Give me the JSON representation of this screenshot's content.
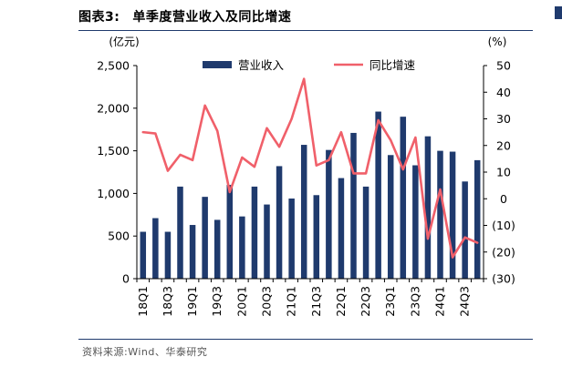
{
  "figure": {
    "label": "图表3:",
    "title": "单季度营业收入及同比增速",
    "source": "资料来源:Wind、华泰研究"
  },
  "chart_data": {
    "type": "bar",
    "categories": [
      "18Q1",
      "18Q2",
      "18Q3",
      "18Q4",
      "19Q1",
      "19Q2",
      "19Q3",
      "19Q4",
      "20Q1",
      "20Q2",
      "20Q3",
      "20Q4",
      "21Q1",
      "21Q2",
      "21Q3",
      "21Q4",
      "22Q1",
      "22Q2",
      "22Q3",
      "22Q4",
      "23Q1",
      "23Q2",
      "23Q3",
      "23Q4",
      "24Q1",
      "24Q2",
      "24Q3",
      "24Q4"
    ],
    "tick_labels_shown": [
      "18Q1",
      "18Q3",
      "19Q1",
      "19Q3",
      "20Q1",
      "20Q3",
      "21Q1",
      "21Q3",
      "22Q1",
      "22Q3",
      "23Q1",
      "23Q3",
      "24Q1",
      "24Q3"
    ],
    "series": [
      {
        "name": "营业收入",
        "type": "bar",
        "axis": "left",
        "color": "#1f3a6d",
        "values": [
          550,
          710,
          550,
          1080,
          630,
          960,
          690,
          1100,
          730,
          1080,
          870,
          1320,
          940,
          1570,
          980,
          1510,
          1180,
          1710,
          1080,
          1960,
          1450,
          1900,
          1330,
          1670,
          1500,
          1490,
          1140,
          1390
        ]
      },
      {
        "name": "同比增速",
        "type": "line",
        "axis": "right",
        "color": "#f0606a",
        "values": [
          25,
          24.5,
          10.5,
          16.5,
          14.5,
          35,
          25.5,
          2.5,
          15.5,
          12,
          26.5,
          19.5,
          30,
          45,
          12.5,
          14.5,
          25,
          9.5,
          9.5,
          29.5,
          22,
          11,
          23,
          -15,
          3.5,
          -22,
          -14.5,
          -16.5
        ]
      }
    ],
    "left_axis": {
      "unit": "(亿元)",
      "ylim": [
        0,
        2500
      ],
      "ticks": [
        "0",
        "500",
        "1,000",
        "1,500",
        "2,000",
        "2,500"
      ],
      "tick_values": [
        0,
        500,
        1000,
        1500,
        2000,
        2500
      ]
    },
    "right_axis": {
      "unit": "(%)",
      "ylim": [
        -30,
        50
      ],
      "ticks": [
        "(30)",
        "(20)",
        "(10)",
        "0",
        "10",
        "20",
        "30",
        "40",
        "50"
      ],
      "tick_values": [
        -30,
        -20,
        -10,
        0,
        10,
        20,
        30,
        40,
        50
      ]
    },
    "legend_position": "top-center",
    "grid": false
  }
}
